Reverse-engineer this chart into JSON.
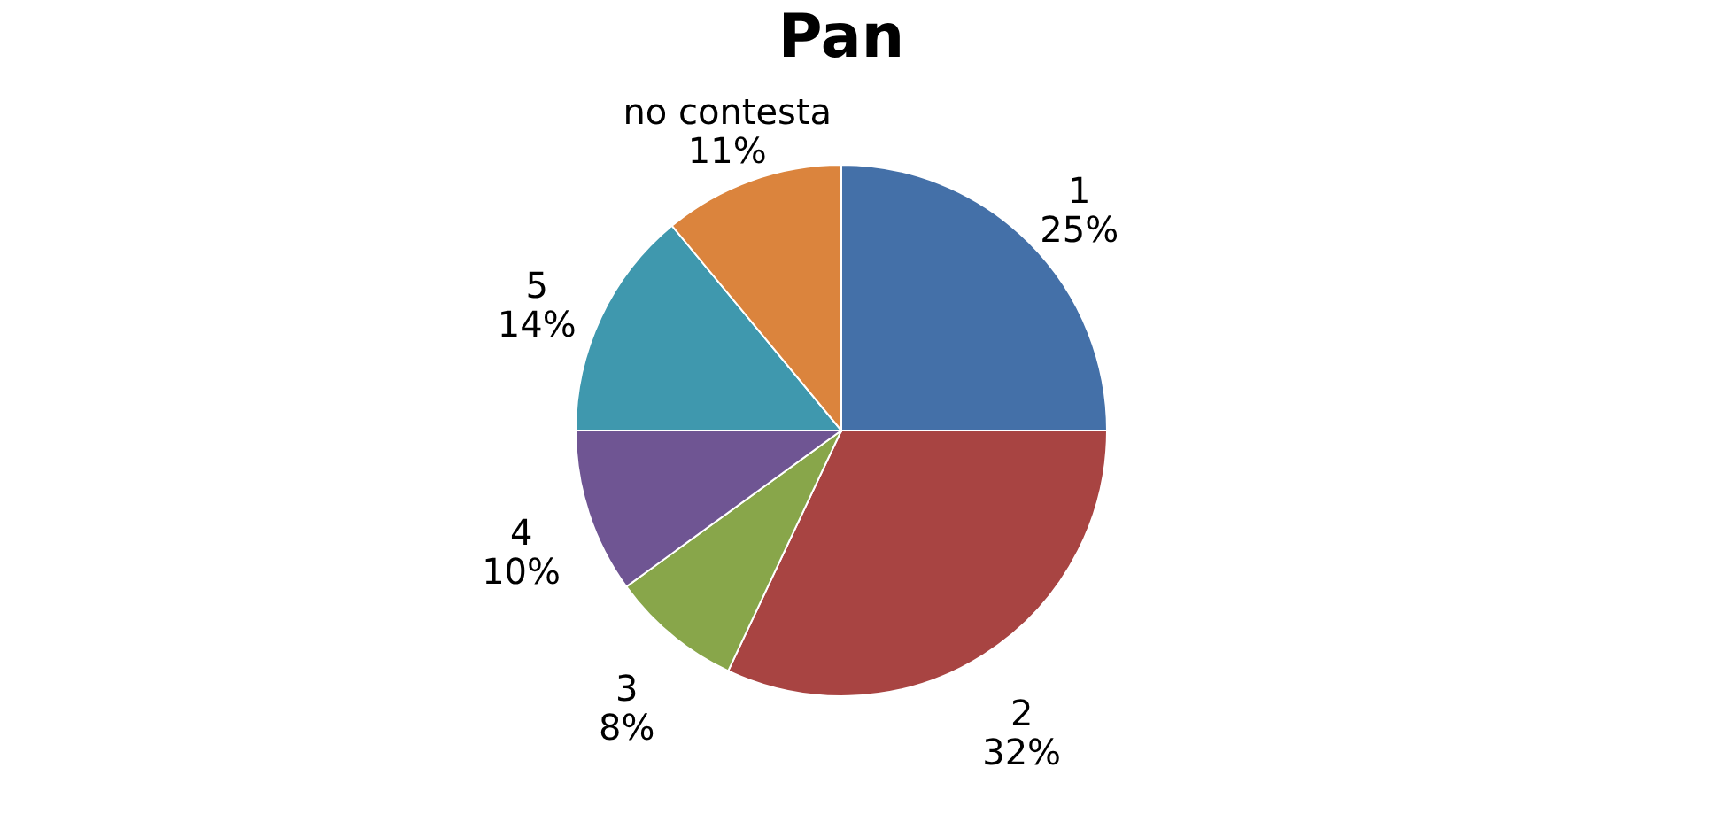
{
  "chart_data": {
    "type": "pie",
    "title": "Pan",
    "categories": [
      "1",
      "2",
      "3",
      "4",
      "5",
      "no contesta"
    ],
    "values": [
      25,
      32,
      8,
      10,
      14,
      11
    ],
    "value_labels": [
      "25%",
      "32%",
      "8%",
      "10%",
      "14%",
      "11%"
    ],
    "colors": [
      "#4470a8",
      "#a84442",
      "#88a64a",
      "#6f5593",
      "#3f98ae",
      "#db843d"
    ]
  }
}
